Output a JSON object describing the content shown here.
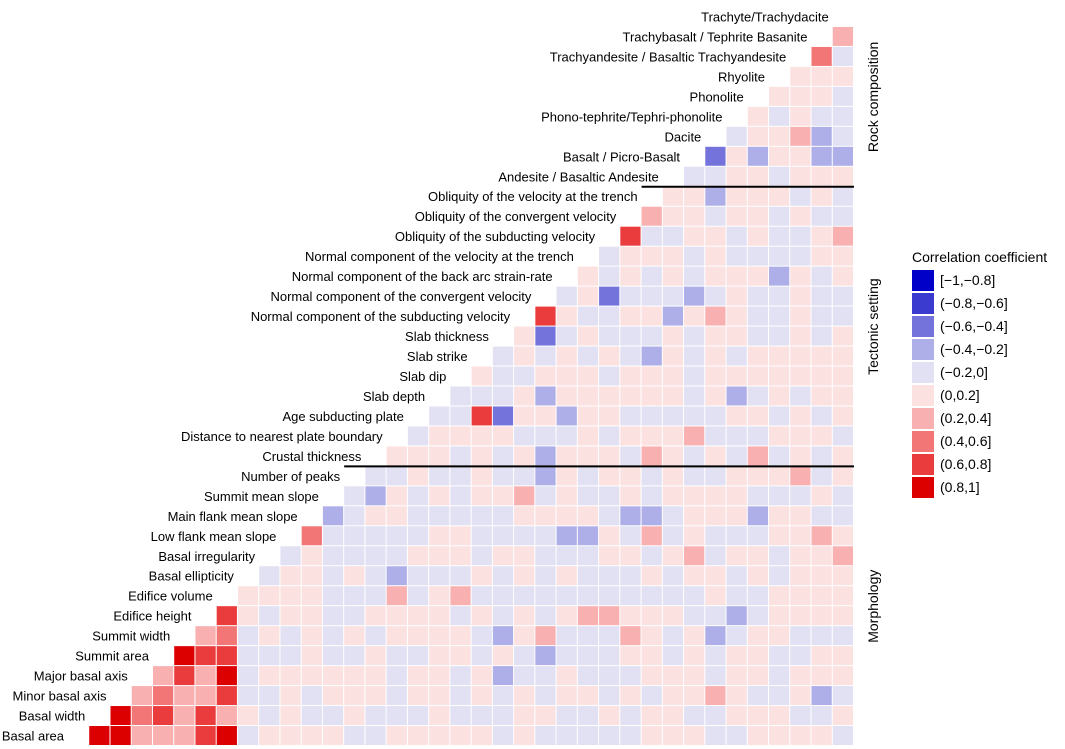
{
  "chart_data": {
    "type": "heatmap",
    "title": "",
    "variables_bottom_to_top": [
      "Basal area",
      "Basal width",
      "Minor basal axis",
      "Major basal axis",
      "Summit area",
      "Summit width",
      "Edifice height",
      "Edifice volume",
      "Basal ellipticity",
      "Basal irregularity",
      "Low flank mean slope",
      "Main flank mean slope",
      "Summit mean slope",
      "Number of peaks",
      "Crustal thickness",
      "Distance to nearest plate boundary",
      "Age subducting plate",
      "Slab depth",
      "Slab dip",
      "Slab strike",
      "Slab thickness",
      "Normal component of the subducting velocity",
      "Normal component of the convergent velocity",
      "Normal component of the back arc strain-rate",
      "Normal component of the velocity at the trench",
      "Obliquity of the subducting velocity",
      "Obliquity of the convergent velocity",
      "Obliquity of the velocity at the trench",
      "Andesite / Basaltic Andesite",
      "Basalt / Picro-Basalt",
      "Dacite",
      "Phono-tephrite/Tephri-phonolite",
      "Phonolite",
      "Rhyolite",
      "Trachyandesite / Basaltic Trachyandesite",
      "Trachybasalt / Tephrite Basanite",
      "Trachyte/Trachydacite"
    ],
    "groups": [
      {
        "name": "Morphology",
        "from_index": 0,
        "to_index": 13
      },
      {
        "name": "Tectonic setting",
        "from_index": 14,
        "to_index": 27
      },
      {
        "name": "Rock composition",
        "from_index": 28,
        "to_index": 36
      }
    ],
    "legend": {
      "title": "Correlation coefficient",
      "bins": [
        {
          "label": "[−1,−0.8]",
          "color": "#0000c8"
        },
        {
          "label": "(−0.8,−0.6]",
          "color": "#3b3bd0"
        },
        {
          "label": "(−0.6,−0.4]",
          "color": "#7373db"
        },
        {
          "label": "(−0.4,−0.2]",
          "color": "#aeaee8"
        },
        {
          "label": "(−0.2,0]",
          "color": "#e1e1f3"
        },
        {
          "label": "(0,0.2]",
          "color": "#fce1e1"
        },
        {
          "label": "(0.2,0.4]",
          "color": "#f9b0b0"
        },
        {
          "label": "(0.4,0.6]",
          "color": "#f27676"
        },
        {
          "label": "(0.6,0.8]",
          "color": "#ea3c3c"
        },
        {
          "label": "(0.8,1]",
          "color": "#dd0000"
        }
      ]
    },
    "notable_correlations": [
      {
        "row": "Basal width",
        "col": "Basal area",
        "value": 0.95
      },
      {
        "row": "Minor basal axis",
        "col": "Basal area",
        "value": 0.92
      },
      {
        "row": "Minor basal axis",
        "col": "Basal width",
        "value": 0.93
      },
      {
        "row": "Summit area",
        "col": "Summit width",
        "value": 0.9
      },
      {
        "row": "Edifice height",
        "col": "Edifice volume",
        "value": 0.75
      },
      {
        "row": "Major basal axis",
        "col": "Edifice volume",
        "value": 0.9
      },
      {
        "row": "Basal area",
        "col": "Edifice volume",
        "value": 0.88
      },
      {
        "row": "Low flank mean slope",
        "col": "Main flank mean slope",
        "value": 0.5
      },
      {
        "row": "Main flank mean slope",
        "col": "Summit mean slope",
        "value": -0.3
      },
      {
        "row": "Age subducting plate",
        "col": "Slab strike",
        "value": 0.7
      },
      {
        "row": "Age subducting plate",
        "col": "Slab thickness",
        "value": -0.5
      },
      {
        "row": "Normal component of the subducting velocity",
        "col": "Normal component of the convergent velocity",
        "value": 0.7
      },
      {
        "row": "Normal component of the convergent velocity",
        "col": "Obliquity of the subducting velocity",
        "value": -0.5
      },
      {
        "row": "Slab thickness",
        "col": "Normal component of the convergent velocity",
        "value": -0.55
      },
      {
        "row": "Obliquity of the subducting velocity",
        "col": "Obliquity of the convergent velocity",
        "value": 0.7
      },
      {
        "row": "Obliquity of the convergent velocity",
        "col": "Obliquity of the velocity at the trench",
        "value": 0.35
      },
      {
        "row": "Basalt / Picro-Basalt",
        "col": "Dacite",
        "value": -0.5
      },
      {
        "row": "Trachybasalt / Tephrite Basanite",
        "col": "Trachyte/Trachydacite",
        "value": 0.4
      },
      {
        "row": "Trachyandesite / Basaltic Trachyandesite",
        "col": "Trachybasalt / Tephrite Basanite",
        "value": 0.5
      }
    ]
  }
}
